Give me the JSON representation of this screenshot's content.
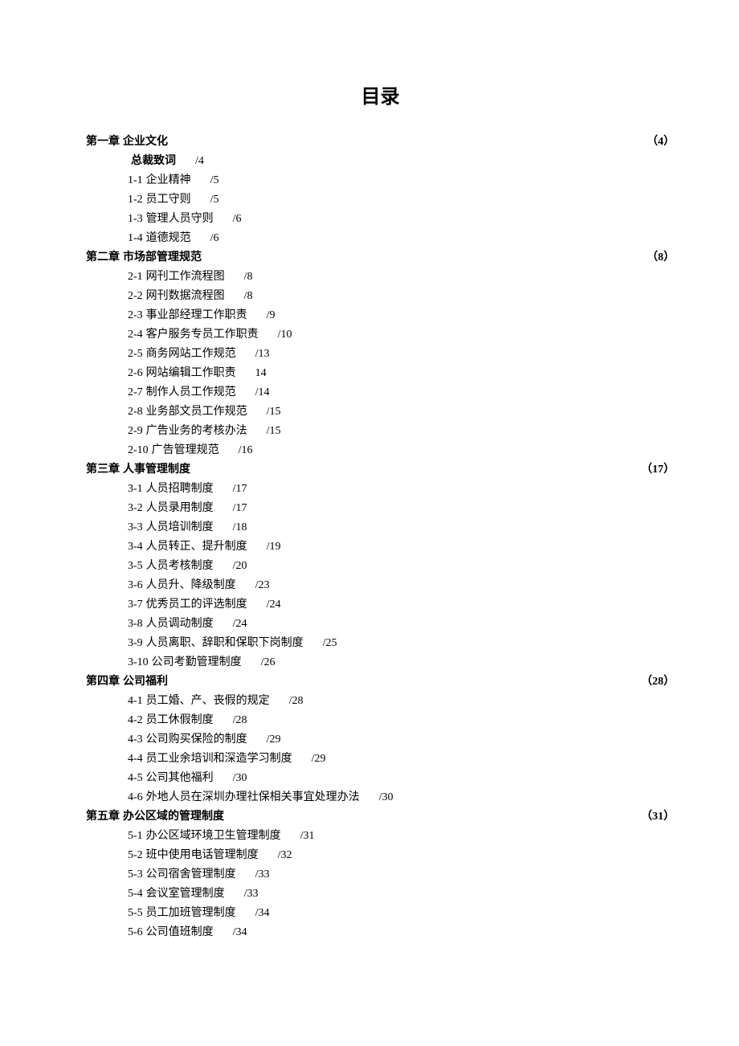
{
  "title": "目录",
  "chapters": [
    {
      "label": "第一章",
      "title": "企业文化",
      "page": "（4）",
      "items": [
        {
          "num": "",
          "text": "总裁致词",
          "page": "/4",
          "bold": true
        },
        {
          "num": "1-1",
          "text": "企业精神",
          "page": "/5"
        },
        {
          "num": "1-2",
          "text": "员工守则",
          "page": "/5"
        },
        {
          "num": "1-3",
          "text": "管理人员守则",
          "page": "/6"
        },
        {
          "num": "1-4",
          "text": "道德规范",
          "page": "/6"
        }
      ]
    },
    {
      "label": "第二章",
      "title": "市场部管理规范",
      "page": "（8）",
      "items": [
        {
          "num": "2-1",
          "text": "网刊工作流程图",
          "page": "/8"
        },
        {
          "num": "2-2",
          "text": "网刊数据流程图",
          "page": "/8"
        },
        {
          "num": "2-3",
          "text": "事业部经理工作职责",
          "page": "/9"
        },
        {
          "num": "2-4",
          "text": "客户服务专员工作职责",
          "page": "/10"
        },
        {
          "num": "2-5",
          "text": "商务网站工作规范",
          "page": "/13"
        },
        {
          "num": "2-6",
          "text": "网站编辑工作职责",
          "page": "14"
        },
        {
          "num": "2-7",
          "text": "制作人员工作规范",
          "page": "/14"
        },
        {
          "num": "2-8",
          "text": "业务部文员工作规范",
          "page": "/15"
        },
        {
          "num": "2-9",
          "text": "广告业务的考核办法",
          "page": "/15"
        },
        {
          "num": "2-10",
          "text": "广告管理规范",
          "page": "/16"
        }
      ]
    },
    {
      "label": "第三章",
      "title": "人事管理制度",
      "page": "（17）",
      "items": [
        {
          "num": "3-1",
          "text": "人员招聘制度",
          "page": "/17"
        },
        {
          "num": "3-2",
          "text": "人员录用制度",
          "page": "/17"
        },
        {
          "num": "3-3",
          "text": "人员培训制度",
          "page": "/18"
        },
        {
          "num": "3-4",
          "text": "人员转正、提升制度",
          "page": "/19"
        },
        {
          "num": "3-5",
          "text": "人员考核制度",
          "page": "/20"
        },
        {
          "num": "3-6",
          "text": "人员升、降级制度",
          "page": "/23"
        },
        {
          "num": "3-7",
          "text": "优秀员工的评选制度",
          "page": "/24"
        },
        {
          "num": "3-8",
          "text": "人员调动制度",
          "page": "/24"
        },
        {
          "num": "3-9",
          "text": "人员离职、辞职和保职下岗制度",
          "page": "/25"
        },
        {
          "num": "3-10",
          "text": "公司考勤管理制度",
          "page": "/26"
        }
      ]
    },
    {
      "label": "第四章",
      "title": "公司福利",
      "page": "（28）",
      "items": [
        {
          "num": "4-1",
          "text": "员工婚、产、丧假的规定",
          "page": "/28"
        },
        {
          "num": "4-2",
          "text": "员工休假制度",
          "page": "/28"
        },
        {
          "num": "4-3",
          "text": "公司购买保险的制度",
          "page": "/29"
        },
        {
          "num": "4-4",
          "text": "员工业余培训和深造学习制度",
          "page": "/29"
        },
        {
          "num": "4-5",
          "text": "公司其他福利",
          "page": "/30"
        },
        {
          "num": "4-6",
          "text": "外地人员在深圳办理社保相关事宜处理办法",
          "page": "/30"
        }
      ]
    },
    {
      "label": "第五章",
      "title": "办公区域的管理制度",
      "page": "（31）",
      "items": [
        {
          "num": "5-1",
          "text": "办公区域环境卫生管理制度",
          "page": "/31"
        },
        {
          "num": "5-2",
          "text": "班中使用电话管理制度",
          "page": "/32"
        },
        {
          "num": "5-3",
          "text": "公司宿舍管理制度",
          "page": "/33"
        },
        {
          "num": "5-4",
          "text": "会议室管理制度",
          "page": "/33"
        },
        {
          "num": "5-5",
          "text": "员工加班管理制度",
          "page": "/34"
        },
        {
          "num": "5-6",
          "text": "公司值班制度",
          "page": "/34"
        }
      ]
    }
  ]
}
